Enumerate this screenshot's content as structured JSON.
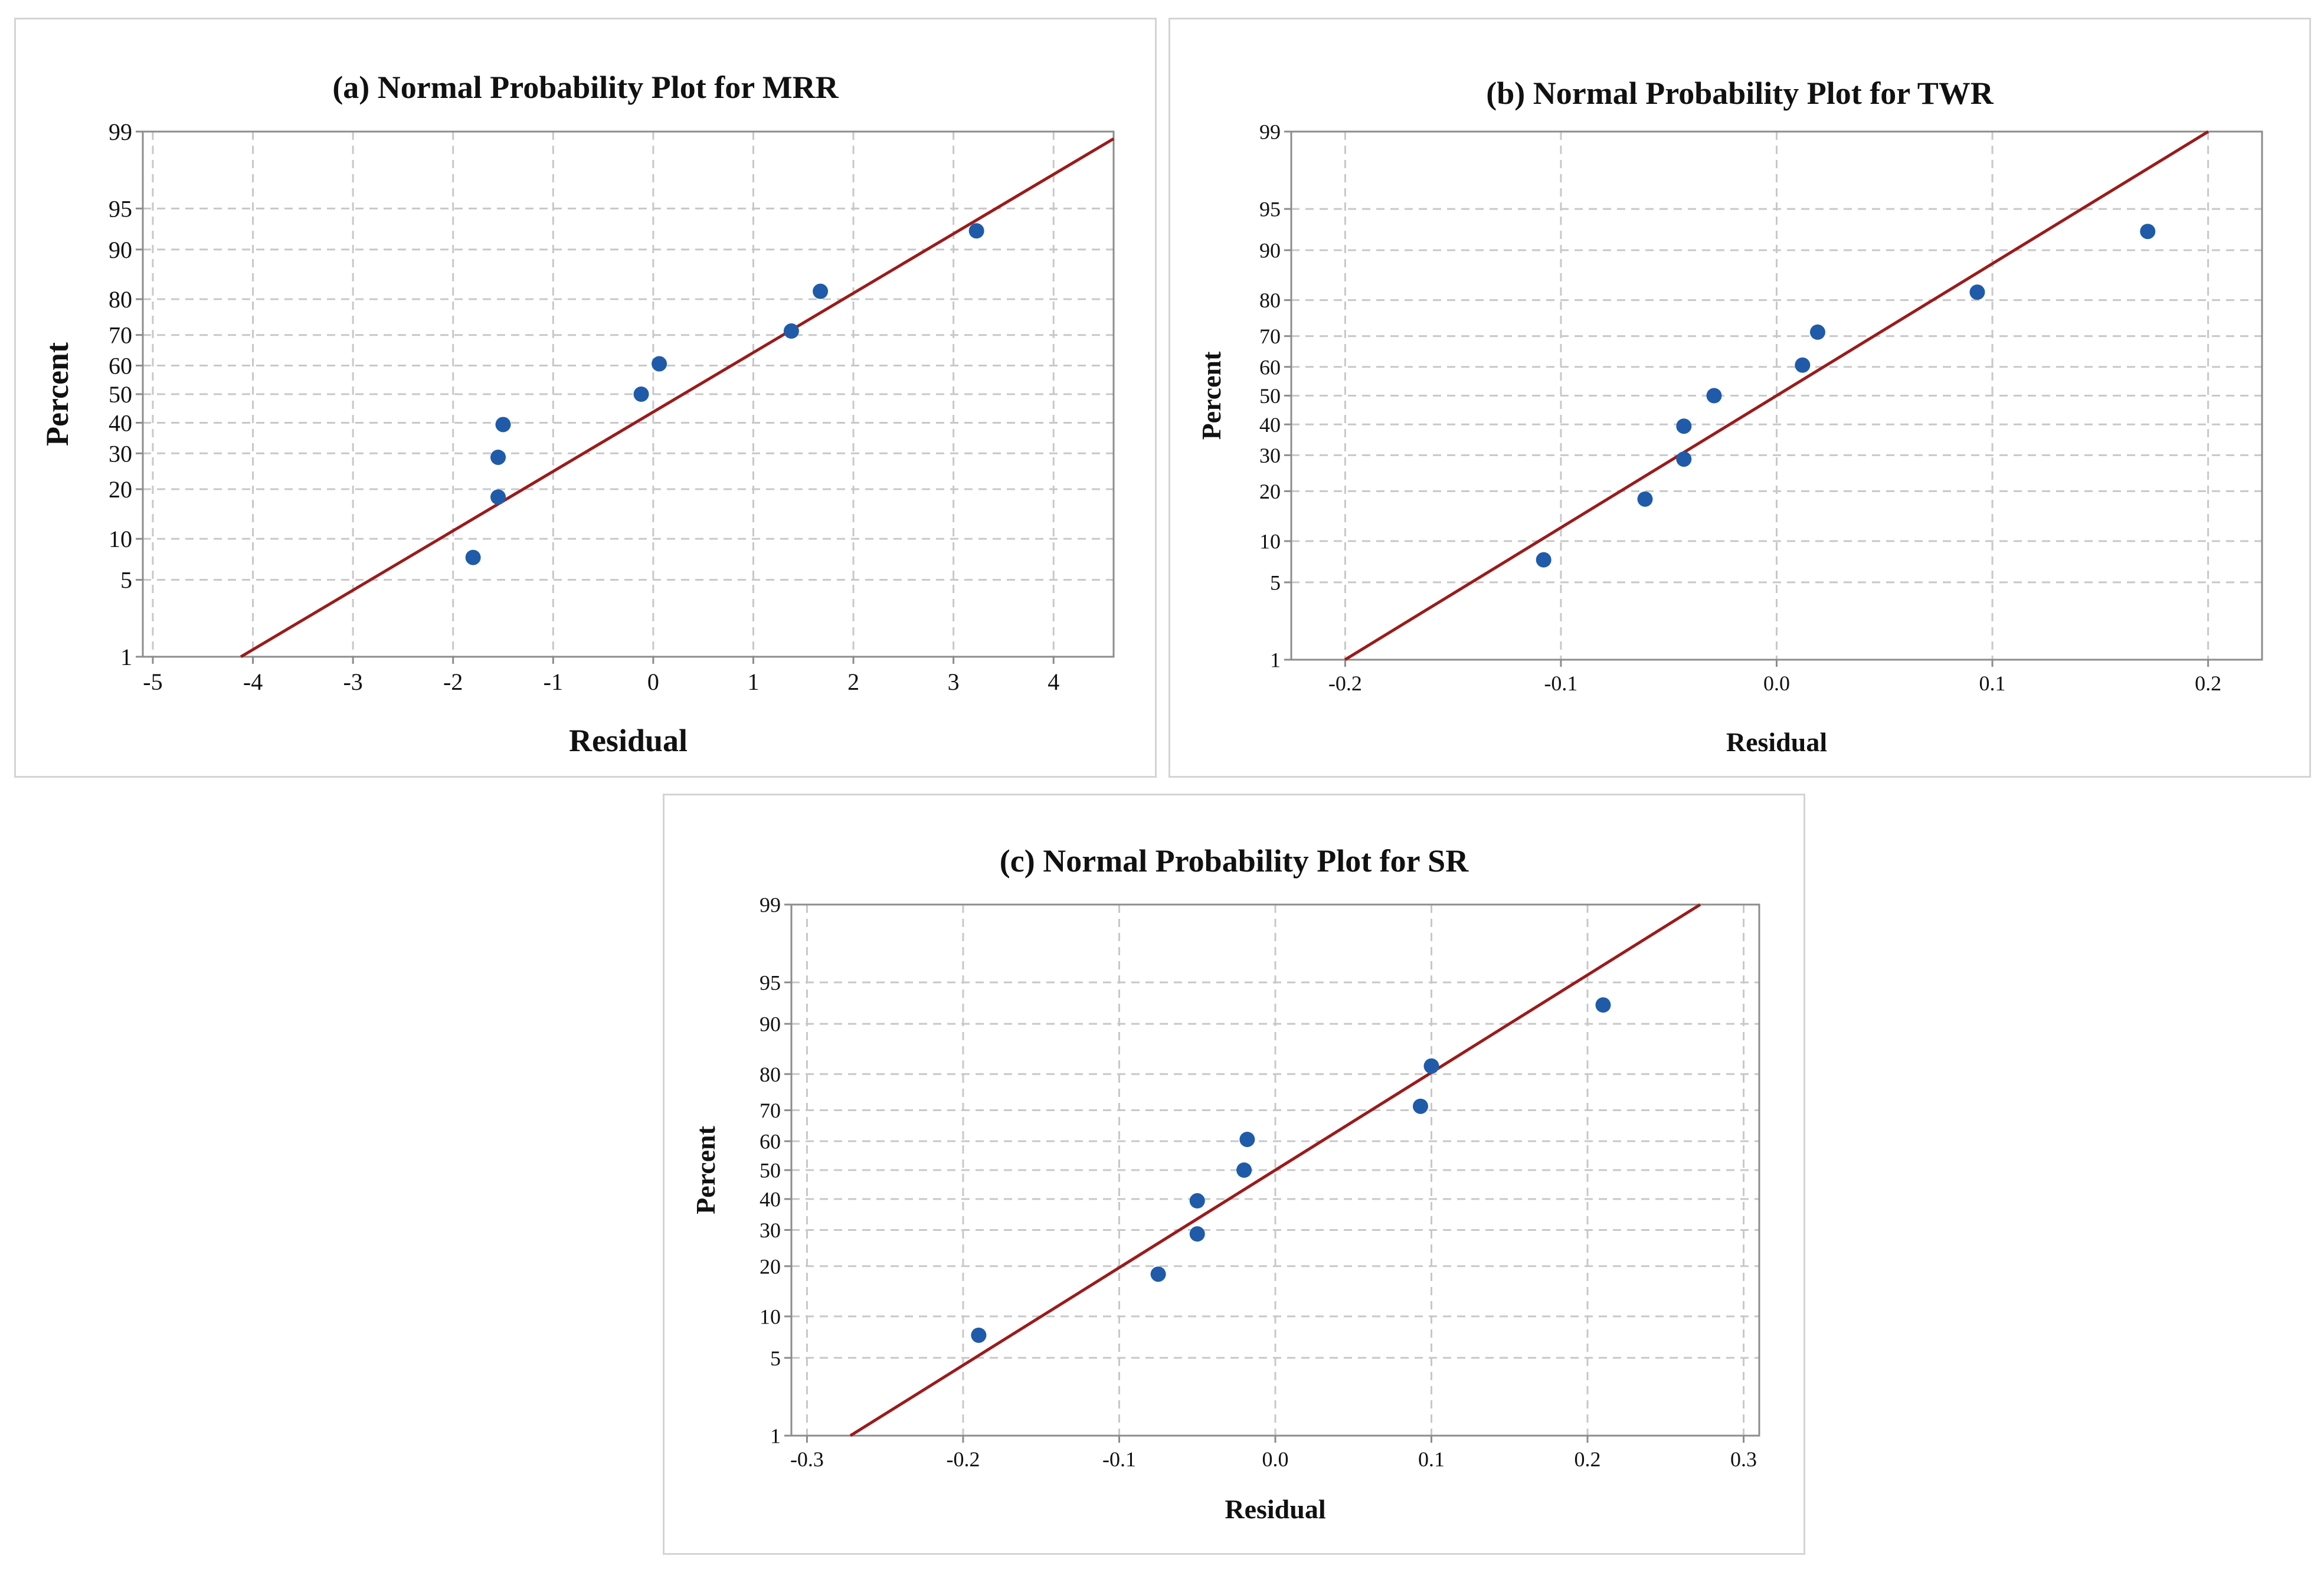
{
  "chart_data": [
    {
      "type": "scatter",
      "title": "(a) Normal Probability Plot for MRR",
      "xlabel": "Residual",
      "ylabel": "Percent",
      "xlim": [
        -5.1,
        4.6
      ],
      "xticks": [
        -5,
        -4,
        -3,
        -2,
        -1,
        0,
        1,
        2,
        3,
        4
      ],
      "xtick_labels": [
        "-5",
        "-4",
        "-3",
        "-2",
        "-1",
        "0",
        "1",
        "2",
        "3",
        "4"
      ],
      "ylim": [
        1,
        99
      ],
      "yticks": [
        1,
        5,
        10,
        20,
        30,
        40,
        50,
        60,
        70,
        80,
        90,
        95,
        99
      ],
      "ytick_labels": [
        "1",
        "5",
        "10",
        "20",
        "30",
        "40",
        "50",
        "60",
        "70",
        "80",
        "90",
        "95",
        "99"
      ],
      "grid": true,
      "fit_line": {
        "mean": 0.3,
        "sd": 1.9
      },
      "points": [
        {
          "x": -1.8,
          "y": 7.4
        },
        {
          "x": -1.55,
          "y": 18.1
        },
        {
          "x": -1.55,
          "y": 28.8
        },
        {
          "x": -1.5,
          "y": 39.4
        },
        {
          "x": -0.12,
          "y": 50.0
        },
        {
          "x": 0.06,
          "y": 60.6
        },
        {
          "x": 1.38,
          "y": 71.2
        },
        {
          "x": 1.67,
          "y": 81.9
        },
        {
          "x": 3.23,
          "y": 92.6
        }
      ]
    },
    {
      "type": "scatter",
      "title": "(b) Normal Probability Plot for TWR",
      "xlabel": "Residual",
      "ylabel": "Percent",
      "xlim": [
        -0.225,
        0.225
      ],
      "xticks": [
        -0.2,
        -0.1,
        0.0,
        0.1,
        0.2
      ],
      "xtick_labels": [
        "-0.2",
        "-0.1",
        "0.0",
        "0.1",
        "0.2"
      ],
      "ylim": [
        1,
        99
      ],
      "yticks": [
        1,
        5,
        10,
        20,
        30,
        40,
        50,
        60,
        70,
        80,
        90,
        95,
        99
      ],
      "ytick_labels": [
        "1",
        "5",
        "10",
        "20",
        "30",
        "40",
        "50",
        "60",
        "70",
        "80",
        "90",
        "95",
        "99"
      ],
      "grid": true,
      "fit_line": {
        "mean": 0.0,
        "sd": 0.086
      },
      "points": [
        {
          "x": -0.108,
          "y": 7.4
        },
        {
          "x": -0.061,
          "y": 18.1
        },
        {
          "x": -0.043,
          "y": 28.8
        },
        {
          "x": -0.043,
          "y": 39.4
        },
        {
          "x": -0.029,
          "y": 50.0
        },
        {
          "x": 0.012,
          "y": 60.6
        },
        {
          "x": 0.019,
          "y": 71.2
        },
        {
          "x": 0.093,
          "y": 81.9
        },
        {
          "x": 0.172,
          "y": 92.6
        }
      ]
    },
    {
      "type": "scatter",
      "title": "(c) Normal Probability Plot for SR",
      "xlabel": "Residual",
      "ylabel": "Percent",
      "xlim": [
        -0.31,
        0.31
      ],
      "xticks": [
        -0.3,
        -0.2,
        -0.1,
        0.0,
        0.1,
        0.2,
        0.3
      ],
      "xtick_labels": [
        "-0.3",
        "-0.2",
        "-0.1",
        "0.0",
        "0.1",
        "0.2",
        "0.3"
      ],
      "ylim": [
        1,
        99
      ],
      "yticks": [
        1,
        5,
        10,
        20,
        30,
        40,
        50,
        60,
        70,
        80,
        90,
        95,
        99
      ],
      "ytick_labels": [
        "1",
        "5",
        "10",
        "20",
        "30",
        "40",
        "50",
        "60",
        "70",
        "80",
        "90",
        "95",
        "99"
      ],
      "grid": true,
      "fit_line": {
        "mean": 0.0,
        "sd": 0.117
      },
      "points": [
        {
          "x": -0.19,
          "y": 7.4
        },
        {
          "x": -0.075,
          "y": 18.1
        },
        {
          "x": -0.05,
          "y": 28.8
        },
        {
          "x": -0.05,
          "y": 39.4
        },
        {
          "x": -0.02,
          "y": 50.0
        },
        {
          "x": -0.018,
          "y": 60.6
        },
        {
          "x": 0.093,
          "y": 71.2
        },
        {
          "x": 0.1,
          "y": 81.9
        },
        {
          "x": 0.21,
          "y": 92.6
        }
      ]
    }
  ],
  "colors": {
    "point": "#1f5ba8",
    "fit_line": "#9b1b1b",
    "grid": "#c8c8c8",
    "frame": "#8c8c8c"
  }
}
